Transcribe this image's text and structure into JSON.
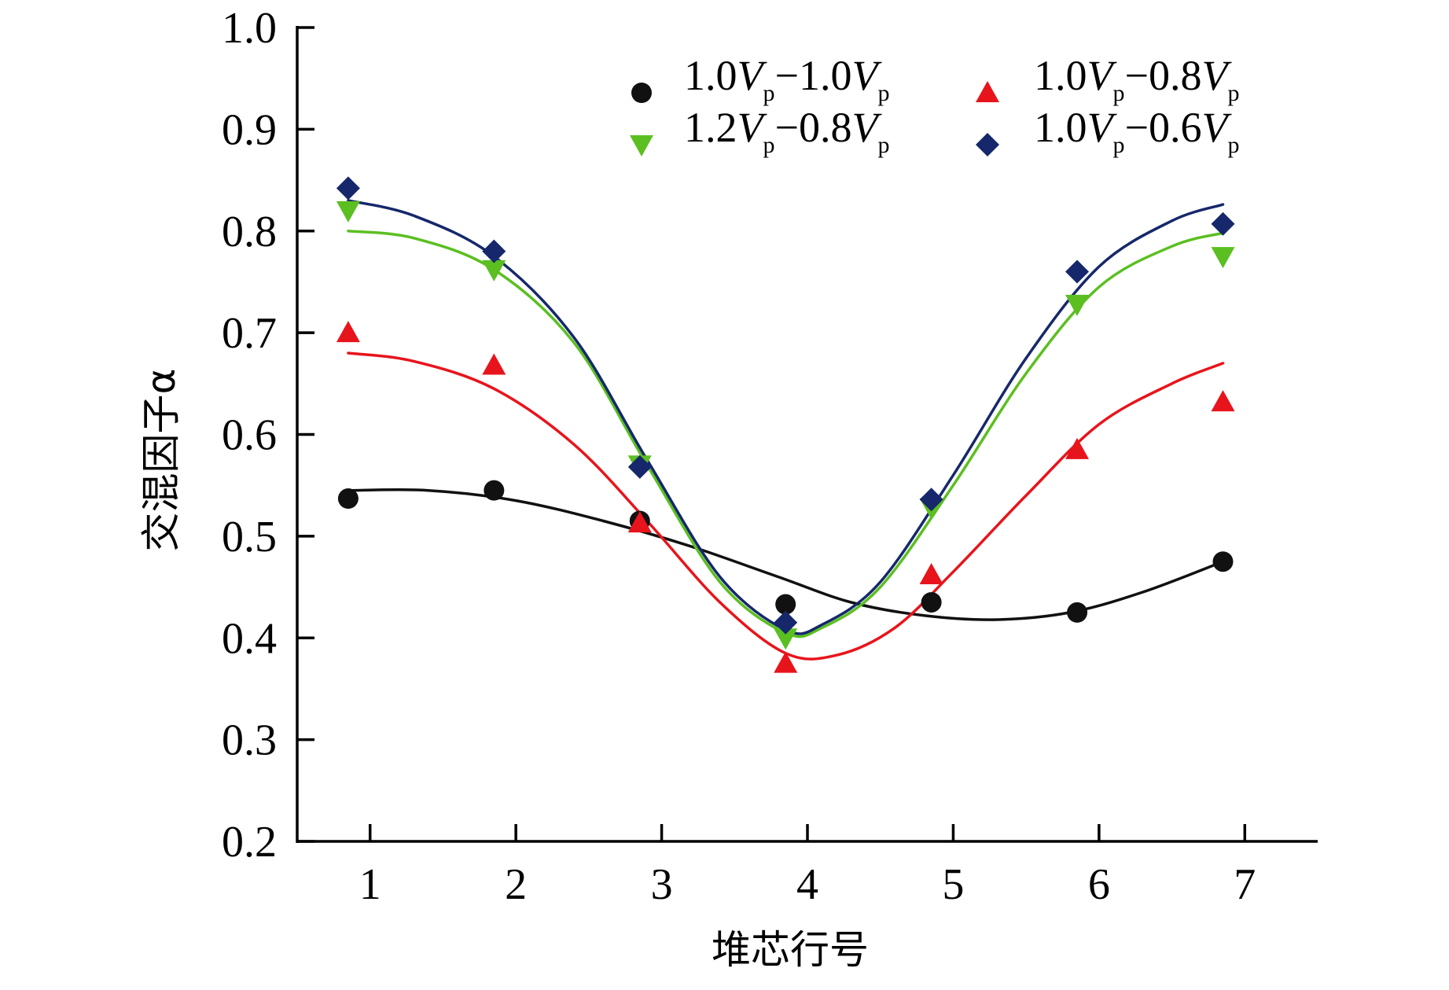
{
  "chart_data": {
    "type": "scatter",
    "title": "",
    "xlabel": "堆芯行号",
    "ylabel": "交混因子α",
    "x_ticks": [
      "1",
      "2",
      "3",
      "4",
      "5",
      "6",
      "7"
    ],
    "y_ticks": [
      "0.2",
      "0.3",
      "0.4",
      "0.5",
      "0.6",
      "0.7",
      "0.8",
      "0.9",
      "1.0"
    ],
    "xlim": [
      0.5,
      7.5
    ],
    "ylim": [
      0.2,
      1.0
    ],
    "legend_placement": "top-right",
    "series": [
      {
        "name": "1.0Vp-1.0Vp",
        "label_parts": [
          "1.0",
          "V",
          "p",
          "−1.0",
          "V",
          "p"
        ],
        "marker": "circle",
        "color": "#111111",
        "x": [
          0.85,
          1.85,
          2.85,
          3.85,
          4.85,
          5.85,
          6.85
        ],
        "values": [
          0.537,
          0.545,
          0.515,
          0.433,
          0.435,
          0.425,
          0.475
        ],
        "fit_x": [
          0.85,
          1.4,
          2.0,
          2.6,
          3.2,
          3.8,
          4.3,
          4.8,
          5.3,
          5.8,
          6.3,
          6.85
        ],
        "fit_y": [
          0.545,
          0.545,
          0.535,
          0.515,
          0.49,
          0.46,
          0.435,
          0.422,
          0.418,
          0.425,
          0.445,
          0.475
        ]
      },
      {
        "name": "1.0Vp-0.8Vp",
        "label_parts": [
          "1.0",
          "V",
          "p",
          "−0.8",
          "V",
          "p"
        ],
        "marker": "triangle-up",
        "color": "#e8141c",
        "x": [
          0.85,
          1.85,
          2.85,
          3.85,
          4.85,
          5.85,
          6.85
        ],
        "values": [
          0.7,
          0.668,
          0.513,
          0.375,
          0.462,
          0.585,
          0.632
        ],
        "fit_x": [
          0.85,
          1.3,
          1.85,
          2.4,
          2.9,
          3.4,
          3.85,
          4.2,
          4.6,
          5.0,
          5.5,
          6.0,
          6.5,
          6.85
        ],
        "fit_y": [
          0.68,
          0.672,
          0.645,
          0.59,
          0.515,
          0.435,
          0.385,
          0.383,
          0.41,
          0.465,
          0.54,
          0.61,
          0.65,
          0.67
        ]
      },
      {
        "name": "1.2Vp-0.8Vp",
        "label_parts": [
          "1.2",
          "V",
          "p",
          "−0.8",
          "V",
          "p"
        ],
        "marker": "triangle-down",
        "color": "#5bbf21",
        "x": [
          0.85,
          1.85,
          2.85,
          3.85,
          4.85,
          5.85,
          6.85
        ],
        "values": [
          0.82,
          0.762,
          0.57,
          0.4,
          0.528,
          0.728,
          0.775
        ],
        "fit_x": [
          0.85,
          1.3,
          1.85,
          2.4,
          2.9,
          3.4,
          3.85,
          4.1,
          4.5,
          5.0,
          5.5,
          6.0,
          6.5,
          6.85
        ],
        "fit_y": [
          0.8,
          0.793,
          0.762,
          0.69,
          0.57,
          0.455,
          0.405,
          0.41,
          0.45,
          0.55,
          0.66,
          0.745,
          0.785,
          0.798
        ]
      },
      {
        "name": "1.0Vp-0.6Vp",
        "label_parts": [
          "1.0",
          "V",
          "p",
          "−0.6",
          "V",
          "p"
        ],
        "marker": "diamond",
        "color": "#16286b",
        "x": [
          0.85,
          1.85,
          2.85,
          3.85,
          4.85,
          5.85,
          6.85
        ],
        "values": [
          0.842,
          0.78,
          0.568,
          0.415,
          0.536,
          0.76,
          0.807
        ],
        "fit_x": [
          0.85,
          1.3,
          1.85,
          2.4,
          2.9,
          3.4,
          3.85,
          4.1,
          4.5,
          5.0,
          5.5,
          6.0,
          6.5,
          6.85
        ],
        "fit_y": [
          0.83,
          0.815,
          0.775,
          0.695,
          0.575,
          0.46,
          0.408,
          0.413,
          0.455,
          0.56,
          0.675,
          0.765,
          0.81,
          0.826
        ]
      }
    ]
  }
}
